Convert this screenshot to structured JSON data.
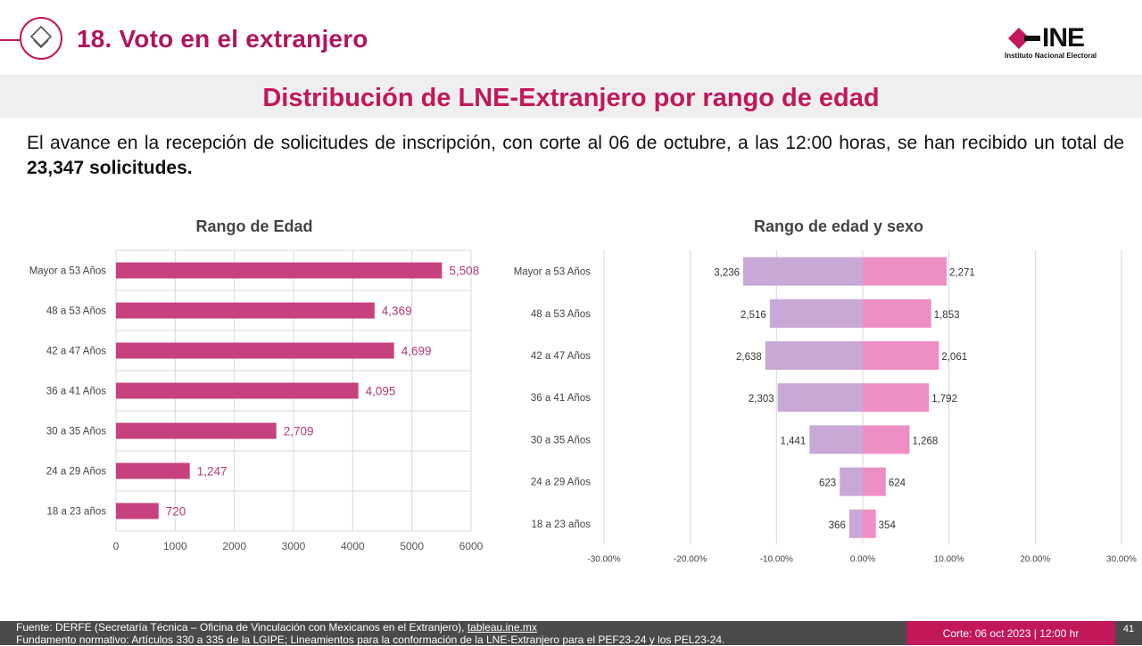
{
  "header": {
    "section_title": "18. Voto en el extranjero",
    "logo_text": "INE",
    "logo_subtitle": "Instituto Nacional Electoral"
  },
  "banner": {
    "title": "Distribución de LNE-Extranjero por rango de edad"
  },
  "intro": {
    "text_before": "El avance en la recepción de solicitudes de inscripción, con corte al 06 de octubre, a las 12:00 horas, se han recibido un total de ",
    "highlight": "23,347 solicitudes",
    "text_after": "."
  },
  "colors": {
    "accent": "#c2185b",
    "bar_total": "#c7417f",
    "bar_left": "#c9a8d8",
    "bar_right": "#ee8fc4"
  },
  "chart_data": [
    {
      "type": "bar",
      "orientation": "horizontal",
      "title": "Rango de Edad",
      "categories": [
        "Mayor a 53 Años",
        "48 a 53 Años",
        "42 a 47 Años",
        "36 a 41 Años",
        "30 a 35 Años",
        "24 a 29 Años",
        "18 a 23 años"
      ],
      "values": [
        5508,
        4369,
        4699,
        4095,
        2709,
        1247,
        720
      ],
      "value_labels": [
        "5,508",
        "4,369",
        "4,699",
        "4,095",
        "2,709",
        "1,247",
        "720"
      ],
      "xlim": [
        0,
        6000
      ],
      "xticks": [
        0,
        1000,
        2000,
        3000,
        4000,
        5000,
        6000
      ],
      "grid": true
    },
    {
      "type": "bar",
      "orientation": "horizontal",
      "subtype": "population-pyramid",
      "title": "Rango de edad y sexo",
      "categories": [
        "Mayor a 53 Años",
        "48 a 53 Años",
        "42 a 47 Años",
        "36 a 41 Años",
        "30 a 35 Años",
        "24 a 29 Años",
        "18 a 23 años"
      ],
      "series": [
        {
          "name": "left",
          "values": [
            3236,
            2516,
            2638,
            2303,
            1441,
            623,
            366
          ],
          "labels": [
            "3,236",
            "2,516",
            "2,638",
            "2,303",
            "1,441",
            "623",
            "366"
          ]
        },
        {
          "name": "right",
          "values": [
            2271,
            1853,
            2061,
            1792,
            1268,
            624,
            354
          ],
          "labels": [
            "2,271",
            "1,853",
            "2,061",
            "1,792",
            "1,268",
            "624",
            "354"
          ]
        }
      ],
      "total": 23347,
      "xlim": [
        -30,
        30
      ],
      "xticks": [
        -30,
        -20,
        -10,
        0,
        10,
        20,
        30
      ],
      "xtick_labels": [
        "-30.00%",
        "-20.00%",
        "-10.00%",
        "0.00%",
        "10.00%",
        "20.00%",
        "30.00%"
      ],
      "grid": true
    }
  ],
  "footer": {
    "source_prefix": "Fuente: DERFE (Secretaría Técnica – Oficina de Vinculación con Mexicanos en el Extranjero), ",
    "source_link": "tableau.ine.mx",
    "basis": "Fundamento normativo: Artículos 330 a 335 de la LGIPE; Lineamientos para la conformación de la LNE-Extranjero para el PEF23-24 y los PEL23-24.",
    "date": "Corte: 06 oct 2023 | 12:00 hr",
    "page_number": "41"
  }
}
